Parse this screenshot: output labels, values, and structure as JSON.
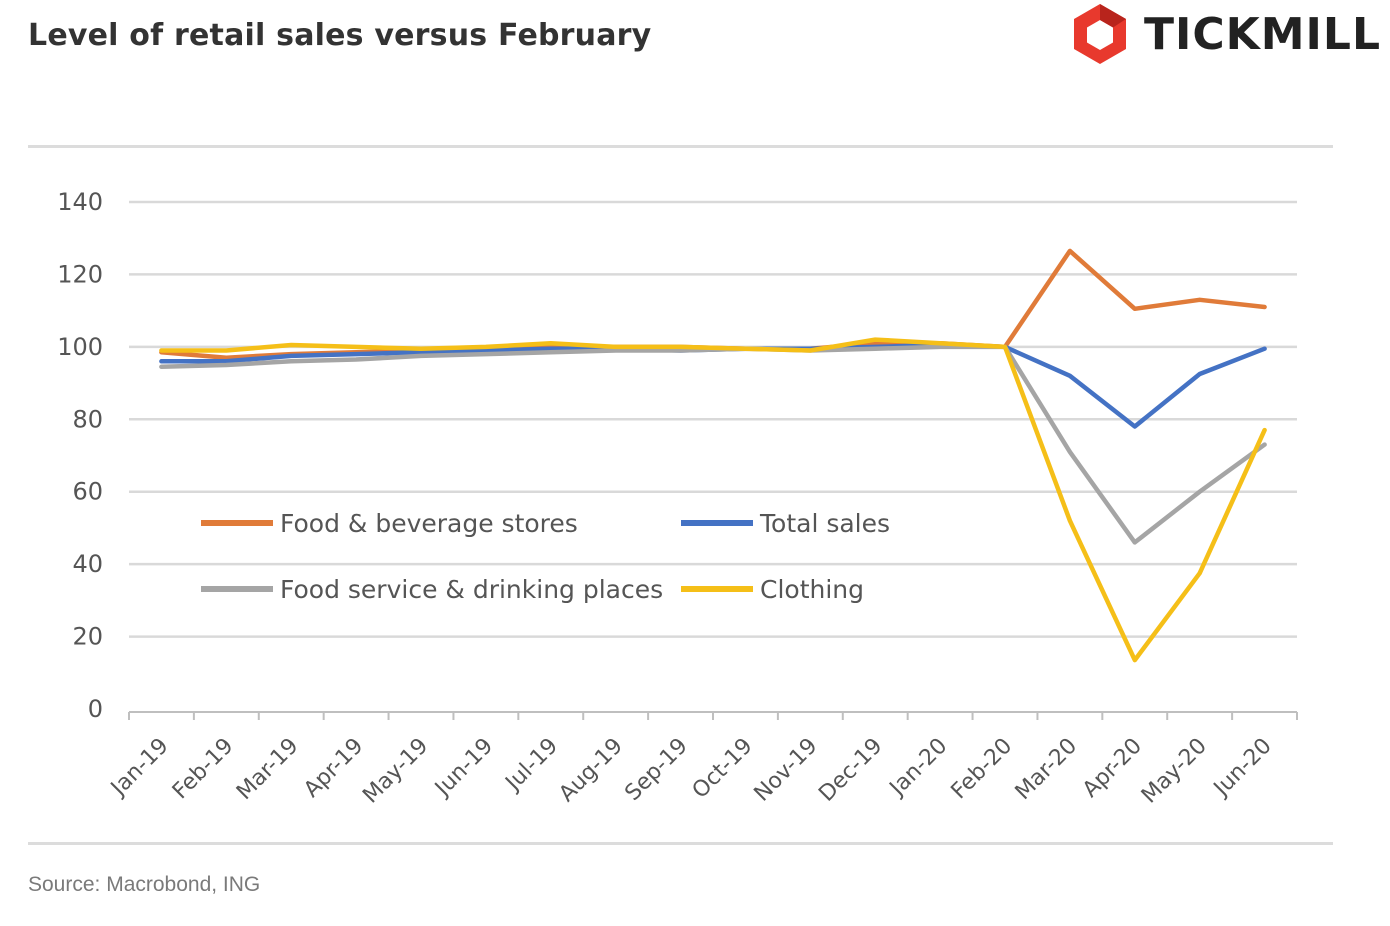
{
  "header": {
    "title": "Level of retail sales versus February",
    "brand": "TICKMILL",
    "brand_color": "#e8392d"
  },
  "footer": {
    "source": "Source: Macrobond, ING"
  },
  "chart_data": {
    "type": "line",
    "title": "Level of retail sales versus February",
    "xlabel": "",
    "ylabel": "",
    "ylim": [
      0,
      140
    ],
    "yticks": [
      0,
      20,
      40,
      60,
      80,
      100,
      120,
      140
    ],
    "grid": true,
    "legend_position": "bottom-left inside plot, 2 columns",
    "categories": [
      "Jan-19",
      "Feb-19",
      "Mar-19",
      "Apr-19",
      "May-19",
      "Jun-19",
      "Jul-19",
      "Aug-19",
      "Sep-19",
      "Oct-19",
      "Nov-19",
      "Dec-19",
      "Jan-20",
      "Feb-20",
      "Mar-20",
      "Apr-20",
      "May-20",
      "Jun-20"
    ],
    "series": [
      {
        "name": "Food & beverage stores",
        "color": "#e07b39",
        "values": [
          98.5,
          97,
          98,
          98.5,
          99,
          99.5,
          100,
          100,
          100,
          99.5,
          99.5,
          101,
          101,
          100,
          126.5,
          110.5,
          113,
          111
        ]
      },
      {
        "name": "Total sales",
        "color": "#4472c4",
        "values": [
          96,
          96,
          97.5,
          98,
          98.5,
          99,
          99.5,
          99.5,
          99,
          99.5,
          99.5,
          100,
          100.5,
          100,
          92,
          78,
          92.5,
          99.5
        ]
      },
      {
        "name": "Food service & drinking places",
        "color": "#a5a5a5",
        "values": [
          94.5,
          95,
          96,
          96.5,
          97.5,
          98,
          98.5,
          99,
          99,
          99.5,
          99,
          99.5,
          100,
          100,
          71,
          46,
          60,
          73
        ]
      },
      {
        "name": "Clothing",
        "color": "#f5bf18",
        "values": [
          99,
          99,
          100.5,
          100,
          99.5,
          100,
          101,
          100,
          100,
          99.5,
          99,
          102,
          101,
          100,
          52,
          13.5,
          37.5,
          77
        ]
      }
    ]
  }
}
